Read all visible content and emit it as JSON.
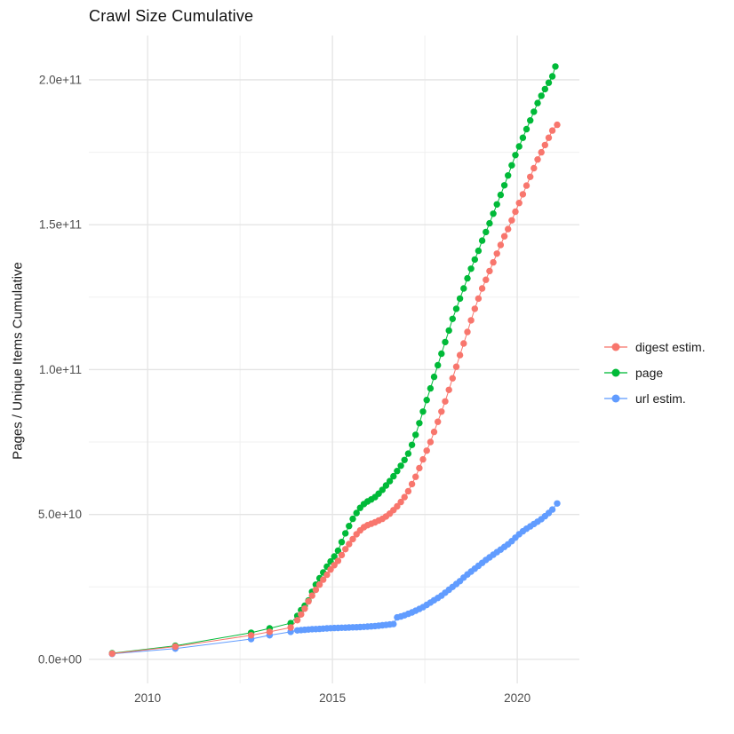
{
  "title": "Crawl Size Cumulative",
  "theme": {
    "background": "#ffffff",
    "grid_major_color": "#e4e4e4",
    "grid_minor_color": "#f0f0f0",
    "axis_text_color": "#4d4d4d",
    "title_color": "#111111"
  },
  "chart_data": {
    "type": "line",
    "title": "Crawl Size Cumulative",
    "xlabel": "",
    "ylabel": "Pages / Unique Items Cumulative",
    "legend_position": "right",
    "grid": true,
    "value_unit": "pages, billions (1e9)",
    "xlim": [
      2008.41,
      2021.68
    ],
    "ylim_billions": [
      -8.3,
      215.3
    ],
    "x_ticks": {
      "major": [
        2010,
        2015,
        2020
      ],
      "major_labels": [
        "2010",
        "2015",
        "2020"
      ],
      "minor": [
        2012.5,
        2017.5
      ]
    },
    "y_ticks": {
      "major_values_billions": [
        0,
        50,
        100,
        150,
        200
      ],
      "major_labels": [
        "0.0e+00",
        "5.0e+10",
        "1.0e+11",
        "1.5e+11",
        "2.0e+11"
      ],
      "minor_values_billions": [
        25,
        75,
        125,
        175
      ]
    },
    "draw_order": [
      1,
      2,
      0
    ],
    "series": [
      {
        "name": "digest estim.",
        "color": "#F8766D",
        "points": [
          [
            2009.04,
            2.0
          ],
          [
            2010.75,
            4.4
          ],
          [
            2012.8,
            8.3
          ],
          [
            2013.3,
            9.5
          ],
          [
            2013.87,
            11.0
          ],
          [
            2014.05,
            13.5
          ],
          [
            2014.15,
            15.5
          ],
          [
            2014.25,
            17.5
          ],
          [
            2014.35,
            20.0
          ],
          [
            2014.45,
            22.0
          ],
          [
            2014.55,
            24.0
          ],
          [
            2014.65,
            25.8
          ],
          [
            2014.75,
            27.5
          ],
          [
            2014.85,
            29.2
          ],
          [
            2014.95,
            31.0
          ],
          [
            2015.05,
            32.5
          ],
          [
            2015.15,
            34.0
          ],
          [
            2015.25,
            36.0
          ],
          [
            2015.35,
            38.0
          ],
          [
            2015.45,
            39.8
          ],
          [
            2015.55,
            41.5
          ],
          [
            2015.65,
            43.2
          ],
          [
            2015.75,
            44.5
          ],
          [
            2015.85,
            45.6
          ],
          [
            2015.95,
            46.3
          ],
          [
            2016.05,
            46.8
          ],
          [
            2016.15,
            47.3
          ],
          [
            2016.25,
            47.9
          ],
          [
            2016.35,
            48.5
          ],
          [
            2016.45,
            49.3
          ],
          [
            2016.55,
            50.3
          ],
          [
            2016.65,
            51.5
          ],
          [
            2016.75,
            52.8
          ],
          [
            2016.85,
            54.3
          ],
          [
            2016.95,
            56.0
          ],
          [
            2017.05,
            58.0
          ],
          [
            2017.15,
            60.5
          ],
          [
            2017.25,
            63.0
          ],
          [
            2017.35,
            66.0
          ],
          [
            2017.45,
            69.0
          ],
          [
            2017.55,
            72.0
          ],
          [
            2017.65,
            75.0
          ],
          [
            2017.75,
            78.5
          ],
          [
            2017.85,
            82.0
          ],
          [
            2017.95,
            85.5
          ],
          [
            2018.05,
            89.0
          ],
          [
            2018.15,
            93.0
          ],
          [
            2018.25,
            97.0
          ],
          [
            2018.35,
            101.0
          ],
          [
            2018.45,
            105.0
          ],
          [
            2018.55,
            109.0
          ],
          [
            2018.65,
            113.0
          ],
          [
            2018.75,
            117.0
          ],
          [
            2018.85,
            121.0
          ],
          [
            2018.95,
            124.5
          ],
          [
            2019.05,
            128.0
          ],
          [
            2019.15,
            131.0
          ],
          [
            2019.25,
            134.0
          ],
          [
            2019.35,
            137.0
          ],
          [
            2019.45,
            140.0
          ],
          [
            2019.55,
            143.0
          ],
          [
            2019.65,
            146.0
          ],
          [
            2019.75,
            148.5
          ],
          [
            2019.85,
            151.5
          ],
          [
            2019.95,
            154.5
          ],
          [
            2020.05,
            157.5
          ],
          [
            2020.15,
            160.5
          ],
          [
            2020.25,
            163.5
          ],
          [
            2020.35,
            166.5
          ],
          [
            2020.45,
            169.5
          ],
          [
            2020.55,
            172.5
          ],
          [
            2020.65,
            175.0
          ],
          [
            2020.75,
            177.5
          ],
          [
            2020.85,
            180.0
          ],
          [
            2020.95,
            182.5
          ],
          [
            2021.08,
            184.5
          ]
        ]
      },
      {
        "name": "page",
        "color": "#00BA38",
        "points": [
          [
            2009.04,
            2.1
          ],
          [
            2010.75,
            4.7
          ],
          [
            2012.8,
            9.2
          ],
          [
            2013.3,
            10.7
          ],
          [
            2013.87,
            12.5
          ],
          [
            2014.05,
            15.0
          ],
          [
            2014.15,
            17.0
          ],
          [
            2014.25,
            18.5
          ],
          [
            2014.35,
            20.3
          ],
          [
            2014.45,
            23.3
          ],
          [
            2014.55,
            25.8
          ],
          [
            2014.65,
            28.0
          ],
          [
            2014.75,
            30.0
          ],
          [
            2014.85,
            32.0
          ],
          [
            2014.95,
            33.8
          ],
          [
            2015.05,
            35.5
          ],
          [
            2015.15,
            37.5
          ],
          [
            2015.25,
            40.5
          ],
          [
            2015.35,
            43.5
          ],
          [
            2015.45,
            46.0
          ],
          [
            2015.55,
            48.5
          ],
          [
            2015.65,
            50.5
          ],
          [
            2015.75,
            52.3
          ],
          [
            2015.85,
            53.6
          ],
          [
            2015.95,
            54.5
          ],
          [
            2016.05,
            55.2
          ],
          [
            2016.15,
            56.0
          ],
          [
            2016.25,
            57.2
          ],
          [
            2016.35,
            58.5
          ],
          [
            2016.45,
            60.0
          ],
          [
            2016.55,
            61.5
          ],
          [
            2016.65,
            63.2
          ],
          [
            2016.75,
            65.0
          ],
          [
            2016.85,
            66.8
          ],
          [
            2016.95,
            68.8
          ],
          [
            2017.05,
            71.0
          ],
          [
            2017.15,
            74.0
          ],
          [
            2017.25,
            77.5
          ],
          [
            2017.35,
            81.5
          ],
          [
            2017.45,
            85.5
          ],
          [
            2017.55,
            89.5
          ],
          [
            2017.65,
            93.5
          ],
          [
            2017.75,
            97.5
          ],
          [
            2017.85,
            101.5
          ],
          [
            2017.95,
            105.5
          ],
          [
            2018.05,
            109.5
          ],
          [
            2018.15,
            113.5
          ],
          [
            2018.25,
            117.5
          ],
          [
            2018.35,
            121.0
          ],
          [
            2018.45,
            124.5
          ],
          [
            2018.55,
            128.0
          ],
          [
            2018.65,
            131.5
          ],
          [
            2018.75,
            134.8
          ],
          [
            2018.85,
            138.0
          ],
          [
            2018.95,
            141.0
          ],
          [
            2019.05,
            144.5
          ],
          [
            2019.15,
            147.5
          ],
          [
            2019.25,
            150.5
          ],
          [
            2019.35,
            153.8
          ],
          [
            2019.45,
            157.0
          ],
          [
            2019.55,
            160.3
          ],
          [
            2019.65,
            163.6
          ],
          [
            2019.75,
            167.0
          ],
          [
            2019.85,
            170.5
          ],
          [
            2019.95,
            174.0
          ],
          [
            2020.05,
            177.0
          ],
          [
            2020.15,
            180.0
          ],
          [
            2020.25,
            183.0
          ],
          [
            2020.35,
            186.0
          ],
          [
            2020.45,
            189.0
          ],
          [
            2020.55,
            192.0
          ],
          [
            2020.65,
            194.5
          ],
          [
            2020.75,
            196.8
          ],
          [
            2020.85,
            199.0
          ],
          [
            2020.95,
            201.2
          ],
          [
            2021.03,
            204.6
          ]
        ]
      },
      {
        "name": "url estim.",
        "color": "#619CFF",
        "points": [
          [
            2009.04,
            1.9
          ],
          [
            2010.75,
            3.7
          ],
          [
            2012.8,
            7.0
          ],
          [
            2013.3,
            8.3
          ],
          [
            2013.87,
            9.5
          ],
          [
            2014.05,
            10.0
          ],
          [
            2014.15,
            10.1
          ],
          [
            2014.25,
            10.2
          ],
          [
            2014.35,
            10.3
          ],
          [
            2014.45,
            10.4
          ],
          [
            2014.55,
            10.45
          ],
          [
            2014.65,
            10.5
          ],
          [
            2014.75,
            10.6
          ],
          [
            2014.85,
            10.7
          ],
          [
            2014.95,
            10.75
          ],
          [
            2015.05,
            10.8
          ],
          [
            2015.15,
            10.85
          ],
          [
            2015.25,
            10.9
          ],
          [
            2015.35,
            10.95
          ],
          [
            2015.45,
            11.0
          ],
          [
            2015.55,
            11.05
          ],
          [
            2015.65,
            11.1
          ],
          [
            2015.75,
            11.15
          ],
          [
            2015.85,
            11.2
          ],
          [
            2015.95,
            11.3
          ],
          [
            2016.05,
            11.4
          ],
          [
            2016.15,
            11.5
          ],
          [
            2016.25,
            11.6
          ],
          [
            2016.35,
            11.75
          ],
          [
            2016.45,
            11.9
          ],
          [
            2016.55,
            12.05
          ],
          [
            2016.65,
            12.2
          ],
          [
            2016.75,
            14.5
          ],
          [
            2016.85,
            14.8
          ],
          [
            2016.95,
            15.2
          ],
          [
            2017.05,
            15.7
          ],
          [
            2017.15,
            16.2
          ],
          [
            2017.25,
            16.8
          ],
          [
            2017.35,
            17.4
          ],
          [
            2017.45,
            18.0
          ],
          [
            2017.55,
            18.8
          ],
          [
            2017.65,
            19.6
          ],
          [
            2017.75,
            20.4
          ],
          [
            2017.85,
            21.2
          ],
          [
            2017.95,
            22.0
          ],
          [
            2018.05,
            23.0
          ],
          [
            2018.15,
            24.0
          ],
          [
            2018.25,
            25.0
          ],
          [
            2018.35,
            26.0
          ],
          [
            2018.45,
            27.0
          ],
          [
            2018.55,
            28.2
          ],
          [
            2018.65,
            29.3
          ],
          [
            2018.75,
            30.3
          ],
          [
            2018.85,
            31.3
          ],
          [
            2018.95,
            32.3
          ],
          [
            2019.05,
            33.3
          ],
          [
            2019.15,
            34.3
          ],
          [
            2019.25,
            35.2
          ],
          [
            2019.35,
            36.1
          ],
          [
            2019.45,
            37.0
          ],
          [
            2019.55,
            37.9
          ],
          [
            2019.65,
            38.8
          ],
          [
            2019.75,
            39.7
          ],
          [
            2019.85,
            40.8
          ],
          [
            2019.95,
            42.0
          ],
          [
            2020.05,
            43.2
          ],
          [
            2020.15,
            44.2
          ],
          [
            2020.25,
            45.1
          ],
          [
            2020.35,
            45.9
          ],
          [
            2020.45,
            46.7
          ],
          [
            2020.55,
            47.5
          ],
          [
            2020.65,
            48.4
          ],
          [
            2020.75,
            49.4
          ],
          [
            2020.85,
            50.5
          ],
          [
            2020.95,
            51.7
          ],
          [
            2021.08,
            53.8
          ]
        ]
      }
    ]
  }
}
